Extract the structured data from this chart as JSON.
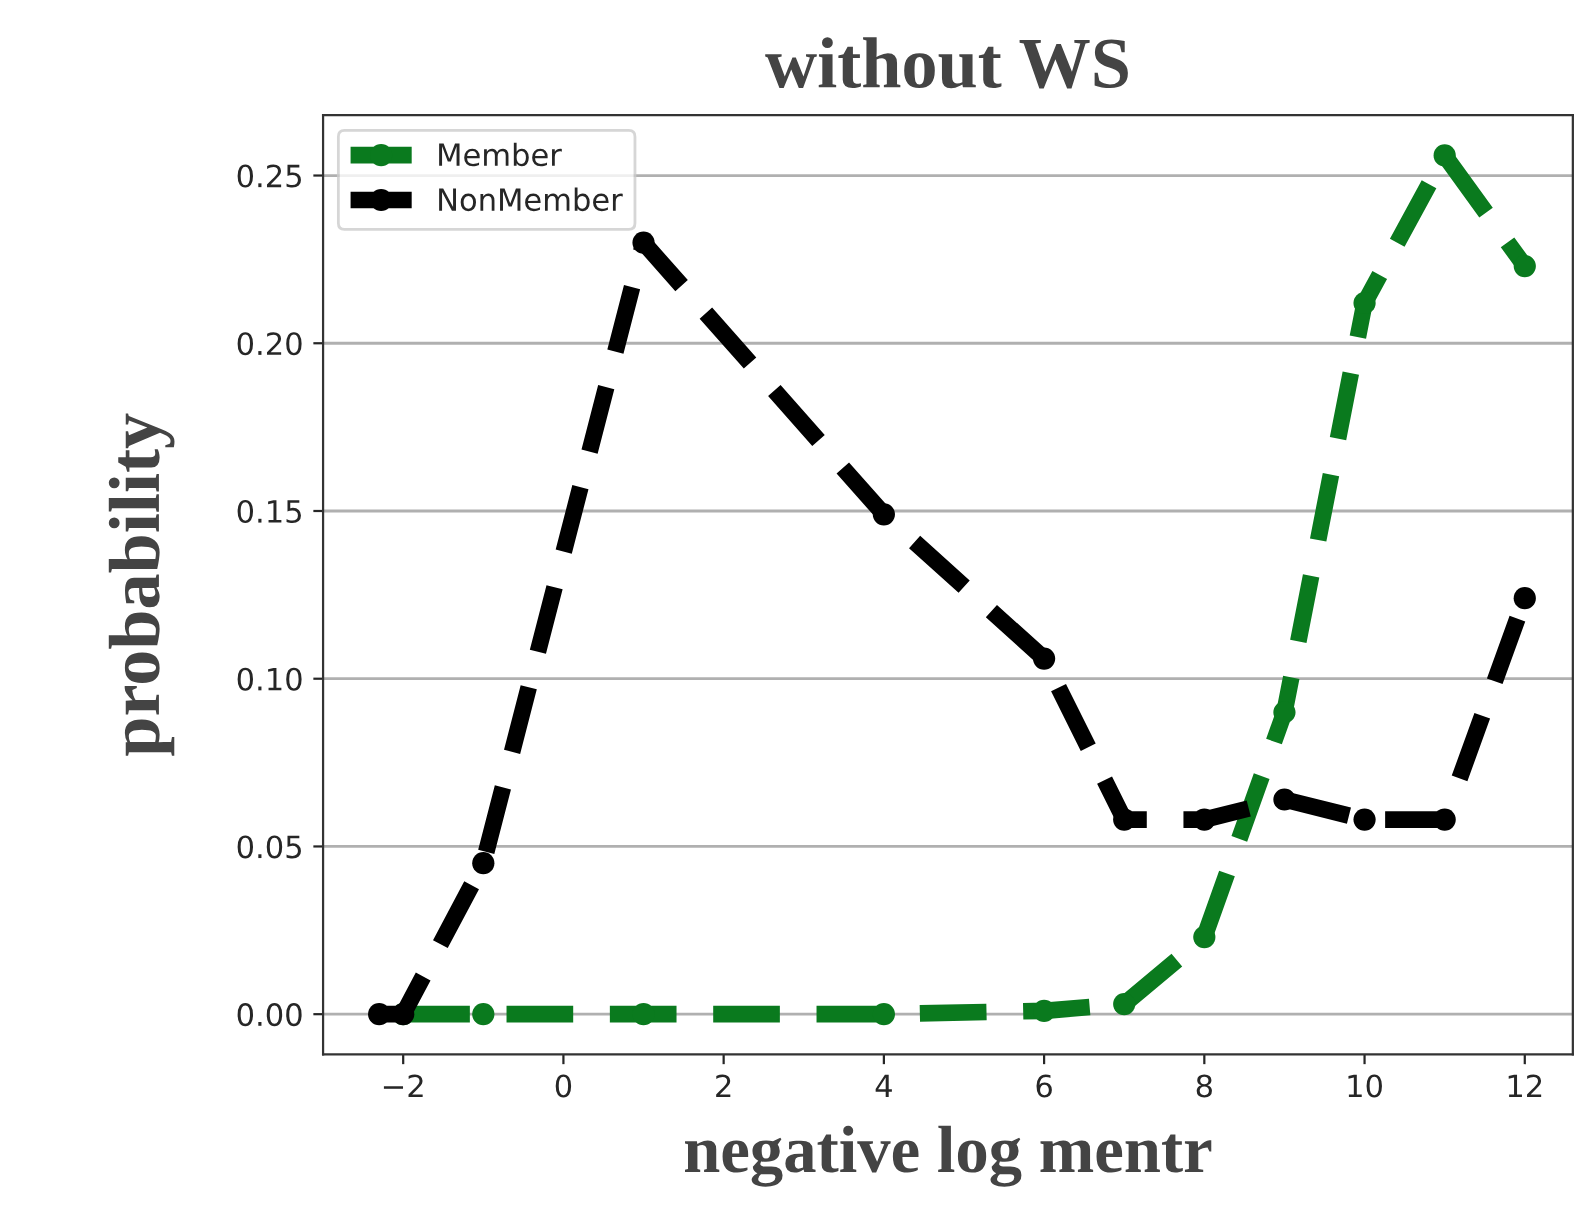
{
  "chart_data": {
    "type": "line",
    "title": "without WS",
    "xlabel": "negative log mentr",
    "ylabel": "probability",
    "series": [
      {
        "name": "Member",
        "color": "#0a7a1e",
        "x": [
          -2,
          -1,
          1,
          4,
          6,
          7,
          8,
          9,
          10,
          11,
          12
        ],
        "values": [
          0,
          0,
          0,
          0,
          0.001,
          0.003,
          0.023,
          0.09,
          0.212,
          0.256,
          0.223
        ]
      },
      {
        "name": "NonMember",
        "color": "#000000",
        "x": [
          -2.3,
          -2,
          -1,
          1,
          4,
          6,
          7,
          8,
          9,
          10,
          11,
          12
        ],
        "values": [
          0,
          0,
          0.045,
          0.23,
          0.149,
          0.106,
          0.058,
          0.058,
          0.064,
          0.058,
          0.058,
          0.124
        ]
      }
    ],
    "xlim": [
      -3,
      12.6
    ],
    "ylim": [
      -0.012,
      0.268
    ],
    "xticks": [
      {
        "value": -2,
        "label": "−2"
      },
      0,
      2,
      4,
      6,
      8,
      10,
      12
    ],
    "yticks": [
      {
        "value": 0,
        "label": "0.00"
      },
      {
        "value": 0.05,
        "label": "0.05"
      },
      {
        "value": 0.1,
        "label": "0.10"
      },
      {
        "value": 0.15,
        "label": "0.15"
      },
      {
        "value": 0.2,
        "label": "0.20"
      },
      {
        "value": 0.25,
        "label": "0.25"
      }
    ],
    "grid": "y",
    "legend": "top left",
    "marker": "circle",
    "line_style": "dashed"
  }
}
